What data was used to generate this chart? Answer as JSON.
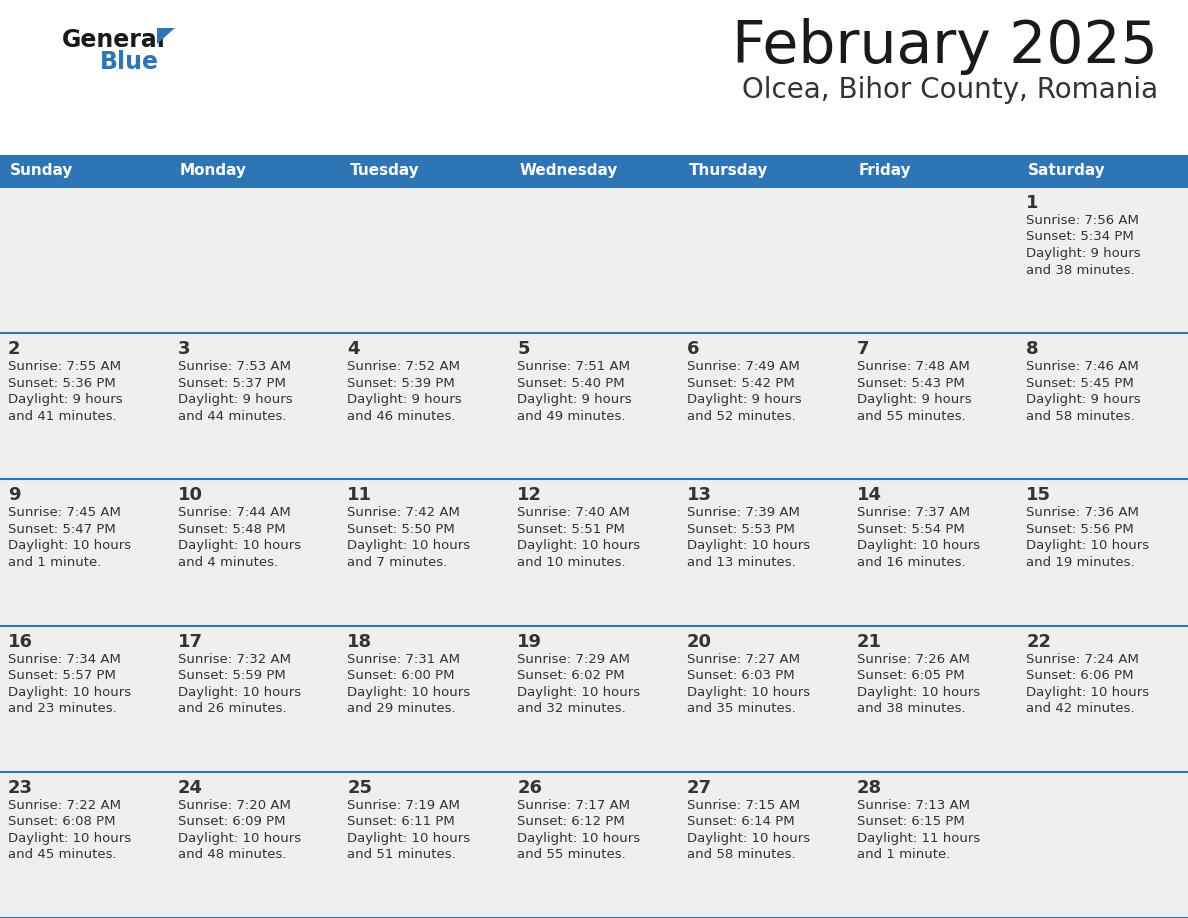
{
  "title": "February 2025",
  "subtitle": "Olcea, Bihor County, Romania",
  "header_color": "#2E75B6",
  "header_text_color": "#FFFFFF",
  "day_names": [
    "Sunday",
    "Monday",
    "Tuesday",
    "Wednesday",
    "Thursday",
    "Friday",
    "Saturday"
  ],
  "cell_bg_color": "#EFEFEF",
  "separator_color": "#2E75B6",
  "text_color": "#333333",
  "title_color": "#1a1a1a",
  "subtitle_color": "#333333",
  "logo_general_color": "#1a1a1a",
  "logo_blue_color": "#2E75B6",
  "logo_triangle_color": "#2E75B6",
  "days": [
    {
      "day": 1,
      "col": 6,
      "row": 0,
      "sunrise": "7:56 AM",
      "sunset": "5:34 PM",
      "daylight": "9 hours and 38 minutes"
    },
    {
      "day": 2,
      "col": 0,
      "row": 1,
      "sunrise": "7:55 AM",
      "sunset": "5:36 PM",
      "daylight": "9 hours and 41 minutes"
    },
    {
      "day": 3,
      "col": 1,
      "row": 1,
      "sunrise": "7:53 AM",
      "sunset": "5:37 PM",
      "daylight": "9 hours and 44 minutes"
    },
    {
      "day": 4,
      "col": 2,
      "row": 1,
      "sunrise": "7:52 AM",
      "sunset": "5:39 PM",
      "daylight": "9 hours and 46 minutes"
    },
    {
      "day": 5,
      "col": 3,
      "row": 1,
      "sunrise": "7:51 AM",
      "sunset": "5:40 PM",
      "daylight": "9 hours and 49 minutes"
    },
    {
      "day": 6,
      "col": 4,
      "row": 1,
      "sunrise": "7:49 AM",
      "sunset": "5:42 PM",
      "daylight": "9 hours and 52 minutes"
    },
    {
      "day": 7,
      "col": 5,
      "row": 1,
      "sunrise": "7:48 AM",
      "sunset": "5:43 PM",
      "daylight": "9 hours and 55 minutes"
    },
    {
      "day": 8,
      "col": 6,
      "row": 1,
      "sunrise": "7:46 AM",
      "sunset": "5:45 PM",
      "daylight": "9 hours and 58 minutes"
    },
    {
      "day": 9,
      "col": 0,
      "row": 2,
      "sunrise": "7:45 AM",
      "sunset": "5:47 PM",
      "daylight": "10 hours and 1 minute"
    },
    {
      "day": 10,
      "col": 1,
      "row": 2,
      "sunrise": "7:44 AM",
      "sunset": "5:48 PM",
      "daylight": "10 hours and 4 minutes"
    },
    {
      "day": 11,
      "col": 2,
      "row": 2,
      "sunrise": "7:42 AM",
      "sunset": "5:50 PM",
      "daylight": "10 hours and 7 minutes"
    },
    {
      "day": 12,
      "col": 3,
      "row": 2,
      "sunrise": "7:40 AM",
      "sunset": "5:51 PM",
      "daylight": "10 hours and 10 minutes"
    },
    {
      "day": 13,
      "col": 4,
      "row": 2,
      "sunrise": "7:39 AM",
      "sunset": "5:53 PM",
      "daylight": "10 hours and 13 minutes"
    },
    {
      "day": 14,
      "col": 5,
      "row": 2,
      "sunrise": "7:37 AM",
      "sunset": "5:54 PM",
      "daylight": "10 hours and 16 minutes"
    },
    {
      "day": 15,
      "col": 6,
      "row": 2,
      "sunrise": "7:36 AM",
      "sunset": "5:56 PM",
      "daylight": "10 hours and 19 minutes"
    },
    {
      "day": 16,
      "col": 0,
      "row": 3,
      "sunrise": "7:34 AM",
      "sunset": "5:57 PM",
      "daylight": "10 hours and 23 minutes"
    },
    {
      "day": 17,
      "col": 1,
      "row": 3,
      "sunrise": "7:32 AM",
      "sunset": "5:59 PM",
      "daylight": "10 hours and 26 minutes"
    },
    {
      "day": 18,
      "col": 2,
      "row": 3,
      "sunrise": "7:31 AM",
      "sunset": "6:00 PM",
      "daylight": "10 hours and 29 minutes"
    },
    {
      "day": 19,
      "col": 3,
      "row": 3,
      "sunrise": "7:29 AM",
      "sunset": "6:02 PM",
      "daylight": "10 hours and 32 minutes"
    },
    {
      "day": 20,
      "col": 4,
      "row": 3,
      "sunrise": "7:27 AM",
      "sunset": "6:03 PM",
      "daylight": "10 hours and 35 minutes"
    },
    {
      "day": 21,
      "col": 5,
      "row": 3,
      "sunrise": "7:26 AM",
      "sunset": "6:05 PM",
      "daylight": "10 hours and 38 minutes"
    },
    {
      "day": 22,
      "col": 6,
      "row": 3,
      "sunrise": "7:24 AM",
      "sunset": "6:06 PM",
      "daylight": "10 hours and 42 minutes"
    },
    {
      "day": 23,
      "col": 0,
      "row": 4,
      "sunrise": "7:22 AM",
      "sunset": "6:08 PM",
      "daylight": "10 hours and 45 minutes"
    },
    {
      "day": 24,
      "col": 1,
      "row": 4,
      "sunrise": "7:20 AM",
      "sunset": "6:09 PM",
      "daylight": "10 hours and 48 minutes"
    },
    {
      "day": 25,
      "col": 2,
      "row": 4,
      "sunrise": "7:19 AM",
      "sunset": "6:11 PM",
      "daylight": "10 hours and 51 minutes"
    },
    {
      "day": 26,
      "col": 3,
      "row": 4,
      "sunrise": "7:17 AM",
      "sunset": "6:12 PM",
      "daylight": "10 hours and 55 minutes"
    },
    {
      "day": 27,
      "col": 4,
      "row": 4,
      "sunrise": "7:15 AM",
      "sunset": "6:14 PM",
      "daylight": "10 hours and 58 minutes"
    },
    {
      "day": 28,
      "col": 5,
      "row": 4,
      "sunrise": "7:13 AM",
      "sunset": "6:15 PM",
      "daylight": "11 hours and 1 minute"
    }
  ]
}
